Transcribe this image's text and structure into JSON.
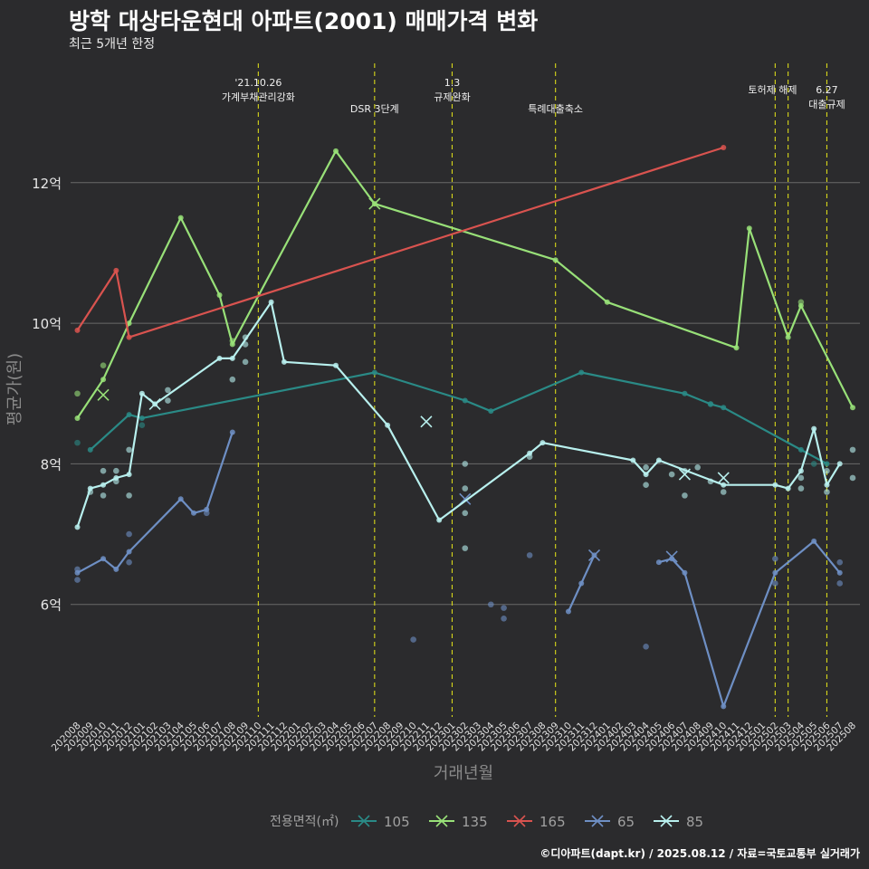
{
  "title": "방학 대상타운현대 아파트(2001) 매매가격 변화",
  "subtitle": "최근 5개년 한정",
  "caption": "©디아파트(dapt.kr) / 2025.08.12 / 자료=국토교통부 실거래가",
  "chart_data": {
    "type": "line",
    "xlabel": "거래년월",
    "ylabel": "평균가(원)",
    "ylim": [
      4.4,
      13.8
    ],
    "yticks": [
      {
        "value": 6,
        "label": "6억"
      },
      {
        "value": 8,
        "label": "8억"
      },
      {
        "value": 10,
        "label": "10억"
      },
      {
        "value": 12,
        "label": "12억"
      }
    ],
    "categories": [
      "202008",
      "202009",
      "202010",
      "202011",
      "202012",
      "202101",
      "202102",
      "202103",
      "202104",
      "202105",
      "202106",
      "202107",
      "202108",
      "202109",
      "202110",
      "202111",
      "202112",
      "202201",
      "202202",
      "202203",
      "202204",
      "202205",
      "202206",
      "202207",
      "202208",
      "202209",
      "202210",
      "202211",
      "202212",
      "202301",
      "202302",
      "202303",
      "202304",
      "202305",
      "202306",
      "202307",
      "202308",
      "202309",
      "202310",
      "202311",
      "202312",
      "202401",
      "202402",
      "202403",
      "202404",
      "202405",
      "202406",
      "202407",
      "202408",
      "202409",
      "202410",
      "202411",
      "202412",
      "202501",
      "202502",
      "202503",
      "202504",
      "202505",
      "202506",
      "202507",
      "202508"
    ],
    "grid": true,
    "legend": {
      "title": "전용면적(㎡)",
      "position": "bottom"
    },
    "series": [
      {
        "name": "105",
        "color": "#2a8a86",
        "line": [
          [
            "202009",
            8.2
          ],
          [
            "202012",
            8.7
          ],
          [
            "202101",
            8.65
          ],
          [
            "202207",
            9.3
          ],
          [
            "202302",
            8.9
          ],
          [
            "202304",
            8.75
          ],
          [
            "202311",
            9.3
          ],
          [
            "202407",
            9.0
          ],
          [
            "202409",
            8.85
          ],
          [
            "202410",
            8.8
          ],
          [
            "202504",
            8.2
          ],
          [
            "202506",
            8.0
          ]
        ],
        "points": [
          [
            "202008",
            8.3
          ],
          [
            "202101",
            8.55
          ],
          [
            "202409",
            8.85
          ],
          [
            "202505",
            8.0
          ]
        ],
        "crosses": []
      },
      {
        "name": "135",
        "color": "#98e078",
        "line": [
          [
            "202008",
            8.65
          ],
          [
            "202010",
            9.2
          ],
          [
            "202012",
            10.0
          ],
          [
            "202104",
            11.5
          ],
          [
            "202107",
            10.4
          ],
          [
            "202108",
            9.7
          ],
          [
            "202204",
            12.45
          ],
          [
            "202207",
            11.7
          ],
          [
            "202309",
            10.9
          ],
          [
            "202401",
            10.3
          ],
          [
            "202411",
            9.65
          ],
          [
            "202412",
            11.35
          ],
          [
            "202503",
            9.8
          ],
          [
            "202504",
            10.25
          ],
          [
            "202508",
            8.8
          ]
        ],
        "points": [
          [
            "202008",
            9.0
          ],
          [
            "202010",
            9.4
          ],
          [
            "202108",
            9.75
          ],
          [
            "202504",
            10.3
          ]
        ],
        "crosses": [
          [
            "202010",
            8.98
          ],
          [
            "202207",
            11.7
          ]
        ]
      },
      {
        "name": "165",
        "color": "#d9534f",
        "line": [
          [
            "202008",
            9.9
          ],
          [
            "202011",
            10.75
          ],
          [
            "202012",
            9.8
          ],
          [
            "202410",
            12.5
          ]
        ],
        "points": [],
        "crosses": []
      },
      {
        "name": "65",
        "color": "#6e8fc4",
        "line": [
          [
            "202008",
            6.45
          ],
          [
            "202010",
            6.65
          ],
          [
            "202011",
            6.5
          ],
          [
            "202012",
            6.75
          ],
          [
            "202104",
            7.5
          ],
          [
            "202105",
            7.3
          ],
          [
            "202106",
            7.35
          ],
          [
            "202108",
            8.45
          ],
          null,
          [
            "202310",
            5.9
          ],
          [
            "202311",
            6.3
          ],
          [
            "202312",
            6.7
          ],
          null,
          [
            "202405",
            6.6
          ],
          [
            "202406",
            6.65
          ],
          [
            "202407",
            6.45
          ],
          [
            "202410",
            4.55
          ],
          [
            "202502",
            6.45
          ],
          [
            "202505",
            6.9
          ],
          [
            "202507",
            6.45
          ]
        ],
        "points": [
          [
            "202008",
            6.5
          ],
          [
            "202008",
            6.35
          ],
          [
            "202012",
            6.6
          ],
          [
            "202012",
            7.0
          ],
          [
            "202106",
            7.3
          ],
          [
            "202210",
            5.5
          ],
          [
            "202304",
            6.0
          ],
          [
            "202305",
            5.8
          ],
          [
            "202305",
            5.95
          ],
          [
            "202307",
            6.7
          ],
          [
            "202404",
            5.4
          ],
          [
            "202502",
            6.3
          ],
          [
            "202502",
            6.65
          ],
          [
            "202507",
            6.6
          ],
          [
            "202507",
            6.3
          ]
        ],
        "crosses": [
          [
            "202302",
            7.5
          ],
          [
            "202312",
            6.7
          ],
          [
            "202406",
            6.68
          ]
        ]
      },
      {
        "name": "85",
        "color": "#b8f0ee",
        "line": [
          [
            "202008",
            7.1
          ],
          [
            "202009",
            7.65
          ],
          [
            "202010",
            7.7
          ],
          [
            "202011",
            7.8
          ],
          [
            "202012",
            7.85
          ],
          [
            "202101",
            9.0
          ],
          [
            "202102",
            8.85
          ],
          [
            "202107",
            9.5
          ],
          [
            "202108",
            9.5
          ],
          [
            "202111",
            10.3
          ],
          [
            "202112",
            9.45
          ],
          [
            "202204",
            9.4
          ],
          [
            "202208",
            8.55
          ],
          [
            "202212",
            7.2
          ],
          [
            "202307",
            8.15
          ],
          [
            "202308",
            8.3
          ],
          [
            "202403",
            8.05
          ],
          [
            "202404",
            7.85
          ],
          [
            "202405",
            8.05
          ],
          [
            "202410",
            7.7
          ],
          [
            "202502",
            7.7
          ],
          [
            "202503",
            7.65
          ],
          [
            "202504",
            7.9
          ],
          [
            "202505",
            8.5
          ],
          [
            "202506",
            7.7
          ],
          [
            "202507",
            8.0
          ]
        ],
        "points": [
          [
            "202009",
            7.6
          ],
          [
            "202010",
            7.9
          ],
          [
            "202010",
            7.55
          ],
          [
            "202011",
            7.9
          ],
          [
            "202011",
            7.75
          ],
          [
            "202012",
            8.2
          ],
          [
            "202012",
            7.55
          ],
          [
            "202103",
            9.05
          ],
          [
            "202103",
            8.9
          ],
          [
            "202108",
            9.2
          ],
          [
            "202109",
            9.8
          ],
          [
            "202109",
            9.7
          ],
          [
            "202109",
            9.45
          ],
          [
            "202302",
            8.0
          ],
          [
            "202302",
            7.65
          ],
          [
            "202302",
            7.3
          ],
          [
            "202302",
            6.8
          ],
          [
            "202307",
            8.1
          ],
          [
            "202404",
            7.7
          ],
          [
            "202404",
            7.95
          ],
          [
            "202406",
            7.85
          ],
          [
            "202407",
            7.9
          ],
          [
            "202407",
            7.55
          ],
          [
            "202408",
            7.95
          ],
          [
            "202409",
            7.75
          ],
          [
            "202410",
            7.6
          ],
          [
            "202504",
            7.8
          ],
          [
            "202504",
            7.65
          ],
          [
            "202506",
            7.9
          ],
          [
            "202506",
            7.6
          ],
          [
            "202508",
            8.2
          ],
          [
            "202508",
            7.8
          ]
        ],
        "crosses": [
          [
            "202102",
            8.85
          ],
          [
            "202211",
            8.6
          ],
          [
            "202407",
            7.85
          ],
          [
            "202410",
            7.8
          ]
        ]
      }
    ],
    "events": [
      {
        "x": "202110",
        "label": "'21.10.26\n가계부채관리강화",
        "row": 0
      },
      {
        "x": "202207",
        "label": "DSR 3단계",
        "row": 2
      },
      {
        "x": "202301",
        "label": "1.3\n규제완화",
        "row": 0
      },
      {
        "x": "202309",
        "label": "특례대출축소",
        "row": 2
      },
      {
        "x": "202502",
        "label": "토허제 해제",
        "row": 1,
        "anchor": "start"
      },
      {
        "x": "202503",
        "label": "",
        "row": 1
      },
      {
        "x": "202506",
        "label": "6.27\n대출규제",
        "row": 1
      }
    ]
  }
}
